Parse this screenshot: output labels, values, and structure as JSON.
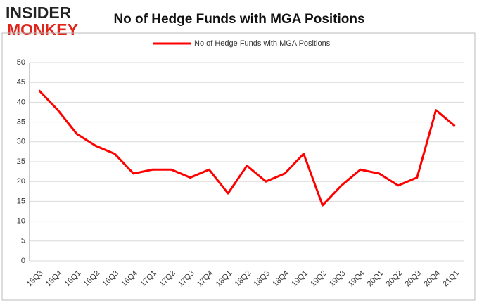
{
  "logo": {
    "top": "INSIDER",
    "bottom": "MONKEY"
  },
  "chart_data": {
    "type": "line",
    "title": "No of Hedge Funds with MGA Positions",
    "categories": [
      "15Q3",
      "15Q4",
      "16Q1",
      "16Q2",
      "16Q3",
      "16Q4",
      "17Q1",
      "17Q2",
      "17Q3",
      "17Q4",
      "18Q1",
      "18Q2",
      "18Q3",
      "18Q4",
      "19Q1",
      "19Q2",
      "19Q3",
      "19Q4",
      "20Q1",
      "20Q2",
      "20Q3",
      "20Q4",
      "21Q1"
    ],
    "series": [
      {
        "name": "No of Hedge Funds with MGA Positions",
        "color": "#ff0000",
        "values": [
          43,
          38,
          32,
          29,
          27,
          22,
          23,
          23,
          21,
          23,
          17,
          24,
          20,
          22,
          27,
          14,
          19,
          23,
          22,
          19,
          21,
          38,
          34
        ]
      }
    ],
    "ylim": [
      0,
      50
    ],
    "yticks": [
      0,
      5,
      10,
      15,
      20,
      25,
      30,
      35,
      40,
      45,
      50
    ],
    "grid": true,
    "legend": "top"
  }
}
